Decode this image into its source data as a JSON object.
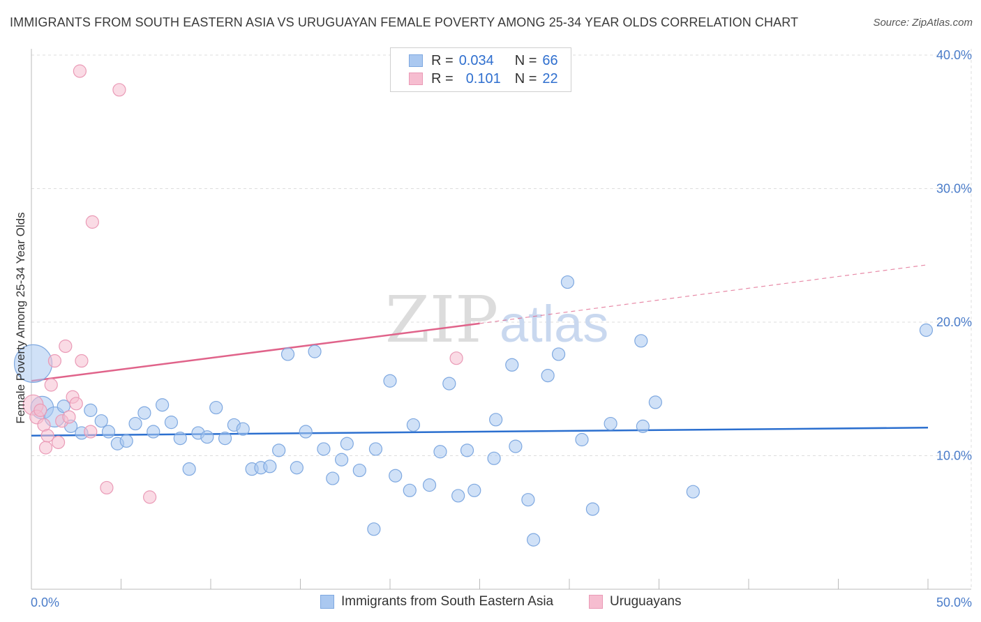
{
  "title": "IMMIGRANTS FROM SOUTH EASTERN ASIA VS URUGUAYAN FEMALE POVERTY AMONG 25-34 YEAR OLDS CORRELATION CHART",
  "source": "Source: ZipAtlas.com",
  "watermark": {
    "zip": "ZIP",
    "atlas": "atlas"
  },
  "legend": {
    "series": [
      {
        "r_label": "R =",
        "r_value": "0.034",
        "n_label": "N =",
        "n_value": "66"
      },
      {
        "r_label": "R =",
        "r_value": "0.101",
        "n_label": "N =",
        "n_value": "22"
      }
    ]
  },
  "bottom_legend": [
    "Immigrants from South Eastern Asia",
    "Uruguayans"
  ],
  "colors": {
    "blue_fill": "#aac8f0",
    "blue_stroke": "#7ea8e0",
    "blue_line": "#2b6fcf",
    "pink_fill": "#f6bdd0",
    "pink_stroke": "#ea9ab6",
    "pink_line": "#e0638a",
    "grid": "#dddddd",
    "axis_text": "#4a7cc9"
  },
  "chart_data": {
    "type": "scatter",
    "title": "IMMIGRANTS FROM SOUTH EASTERN ASIA VS URUGUAYAN FEMALE POVERTY AMONG 25-34 YEAR OLDS CORRELATION CHART",
    "xlabel": "",
    "ylabel": "Female Poverty Among 25-34 Year Olds",
    "xlim": [
      0,
      50
    ],
    "ylim": [
      0,
      40
    ],
    "x_tick_labels": [
      "0.0%",
      "50.0%"
    ],
    "y_ticks": [
      10,
      20,
      30,
      40
    ],
    "y_tick_labels": [
      "10.0%",
      "20.0%",
      "30.0%",
      "40.0%"
    ],
    "series": [
      {
        "name": "Immigrants from South Eastern Asia",
        "color": "blue",
        "points": [
          {
            "x": 0.1,
            "y": 16.9,
            "s": 3.0
          },
          {
            "x": 0.6,
            "y": 13.6,
            "s": 1.8
          },
          {
            "x": 1.3,
            "y": 12.9,
            "s": 1.6
          },
          {
            "x": 1.8,
            "y": 13.7,
            "s": 1.0
          },
          {
            "x": 2.2,
            "y": 12.2,
            "s": 1.0
          },
          {
            "x": 2.8,
            "y": 11.7,
            "s": 1.0
          },
          {
            "x": 3.3,
            "y": 13.4,
            "s": 1.0
          },
          {
            "x": 3.9,
            "y": 12.6,
            "s": 1.0
          },
          {
            "x": 4.3,
            "y": 11.8,
            "s": 1.0
          },
          {
            "x": 4.8,
            "y": 10.9,
            "s": 1.0
          },
          {
            "x": 5.3,
            "y": 11.1,
            "s": 1.0
          },
          {
            "x": 5.8,
            "y": 12.4,
            "s": 1.0
          },
          {
            "x": 6.3,
            "y": 13.2,
            "s": 1.0
          },
          {
            "x": 6.8,
            "y": 11.8,
            "s": 1.0
          },
          {
            "x": 7.3,
            "y": 13.8,
            "s": 1.0
          },
          {
            "x": 7.8,
            "y": 12.5,
            "s": 1.0
          },
          {
            "x": 8.3,
            "y": 11.3,
            "s": 1.0
          },
          {
            "x": 8.8,
            "y": 9.0,
            "s": 1.0
          },
          {
            "x": 9.3,
            "y": 11.7,
            "s": 1.0
          },
          {
            "x": 9.8,
            "y": 11.4,
            "s": 1.0
          },
          {
            "x": 10.3,
            "y": 13.6,
            "s": 1.0
          },
          {
            "x": 10.8,
            "y": 11.3,
            "s": 1.0
          },
          {
            "x": 11.3,
            "y": 12.3,
            "s": 1.0
          },
          {
            "x": 11.8,
            "y": 12.0,
            "s": 1.0
          },
          {
            "x": 12.3,
            "y": 9.0,
            "s": 1.0
          },
          {
            "x": 12.8,
            "y": 9.1,
            "s": 1.0
          },
          {
            "x": 13.3,
            "y": 9.2,
            "s": 1.0
          },
          {
            "x": 13.8,
            "y": 10.4,
            "s": 1.0
          },
          {
            "x": 14.3,
            "y": 17.6,
            "s": 1.0
          },
          {
            "x": 14.8,
            "y": 9.1,
            "s": 1.0
          },
          {
            "x": 15.3,
            "y": 11.8,
            "s": 1.0
          },
          {
            "x": 15.8,
            "y": 17.8,
            "s": 1.0
          },
          {
            "x": 16.3,
            "y": 10.5,
            "s": 1.0
          },
          {
            "x": 16.8,
            "y": 8.3,
            "s": 1.0
          },
          {
            "x": 17.3,
            "y": 9.7,
            "s": 1.0
          },
          {
            "x": 17.6,
            "y": 10.9,
            "s": 1.0
          },
          {
            "x": 18.3,
            "y": 8.9,
            "s": 1.0
          },
          {
            "x": 19.1,
            "y": 4.5,
            "s": 1.0
          },
          {
            "x": 19.2,
            "y": 10.5,
            "s": 1.0
          },
          {
            "x": 20.0,
            "y": 15.6,
            "s": 1.0
          },
          {
            "x": 20.3,
            "y": 8.5,
            "s": 1.0
          },
          {
            "x": 21.1,
            "y": 7.4,
            "s": 1.0
          },
          {
            "x": 21.3,
            "y": 12.3,
            "s": 1.0
          },
          {
            "x": 22.2,
            "y": 7.8,
            "s": 1.0
          },
          {
            "x": 22.8,
            "y": 10.3,
            "s": 1.0
          },
          {
            "x": 23.3,
            "y": 15.4,
            "s": 1.0
          },
          {
            "x": 23.8,
            "y": 7.0,
            "s": 1.0
          },
          {
            "x": 24.3,
            "y": 10.4,
            "s": 1.0
          },
          {
            "x": 24.7,
            "y": 7.4,
            "s": 1.0
          },
          {
            "x": 25.8,
            "y": 9.8,
            "s": 1.0
          },
          {
            "x": 25.9,
            "y": 12.7,
            "s": 1.0
          },
          {
            "x": 26.8,
            "y": 16.8,
            "s": 1.0
          },
          {
            "x": 27.0,
            "y": 10.7,
            "s": 1.0
          },
          {
            "x": 27.7,
            "y": 6.7,
            "s": 1.0
          },
          {
            "x": 28.0,
            "y": 3.7,
            "s": 1.0
          },
          {
            "x": 28.8,
            "y": 16.0,
            "s": 1.0
          },
          {
            "x": 29.4,
            "y": 17.6,
            "s": 1.0
          },
          {
            "x": 29.9,
            "y": 23.0,
            "s": 1.0
          },
          {
            "x": 30.7,
            "y": 11.2,
            "s": 1.0
          },
          {
            "x": 31.3,
            "y": 6.0,
            "s": 1.0
          },
          {
            "x": 32.3,
            "y": 12.4,
            "s": 1.0
          },
          {
            "x": 34.1,
            "y": 12.2,
            "s": 1.0
          },
          {
            "x": 34.0,
            "y": 18.6,
            "s": 1.0
          },
          {
            "x": 34.8,
            "y": 14.0,
            "s": 1.0
          },
          {
            "x": 36.9,
            "y": 7.3,
            "s": 1.0
          },
          {
            "x": 49.9,
            "y": 19.4,
            "s": 1.0
          }
        ],
        "trend": {
          "x0": 0,
          "y0": 11.5,
          "x1": 50,
          "y1": 12.1
        }
      },
      {
        "name": "Uruguayans",
        "color": "pink",
        "points": [
          {
            "x": 0.1,
            "y": 13.8,
            "s": 1.6
          },
          {
            "x": 0.3,
            "y": 12.9,
            "s": 1.1
          },
          {
            "x": 0.5,
            "y": 13.4,
            "s": 1.0
          },
          {
            "x": 0.7,
            "y": 12.3,
            "s": 1.0
          },
          {
            "x": 0.8,
            "y": 10.6,
            "s": 1.0
          },
          {
            "x": 0.9,
            "y": 11.5,
            "s": 1.0
          },
          {
            "x": 1.1,
            "y": 15.3,
            "s": 1.0
          },
          {
            "x": 1.3,
            "y": 17.1,
            "s": 1.0
          },
          {
            "x": 1.5,
            "y": 11.0,
            "s": 1.0
          },
          {
            "x": 1.7,
            "y": 12.6,
            "s": 1.0
          },
          {
            "x": 1.9,
            "y": 18.2,
            "s": 1.0
          },
          {
            "x": 2.1,
            "y": 12.9,
            "s": 1.0
          },
          {
            "x": 2.3,
            "y": 14.4,
            "s": 1.0
          },
          {
            "x": 2.5,
            "y": 13.9,
            "s": 1.0
          },
          {
            "x": 2.8,
            "y": 17.1,
            "s": 1.0
          },
          {
            "x": 2.7,
            "y": 38.8,
            "s": 1.0
          },
          {
            "x": 3.3,
            "y": 11.8,
            "s": 1.0
          },
          {
            "x": 3.4,
            "y": 27.5,
            "s": 1.0
          },
          {
            "x": 4.2,
            "y": 7.6,
            "s": 1.0
          },
          {
            "x": 4.9,
            "y": 37.4,
            "s": 1.0
          },
          {
            "x": 6.6,
            "y": 6.9,
            "s": 1.0
          },
          {
            "x": 23.7,
            "y": 17.3,
            "s": 1.0
          }
        ],
        "trend": {
          "x0": 0,
          "y0": 15.6,
          "x1": 25,
          "y1": 19.9
        },
        "trend_dashed": {
          "x0": 25,
          "y0": 19.9,
          "x1": 50,
          "y1": 24.3
        }
      }
    ]
  }
}
